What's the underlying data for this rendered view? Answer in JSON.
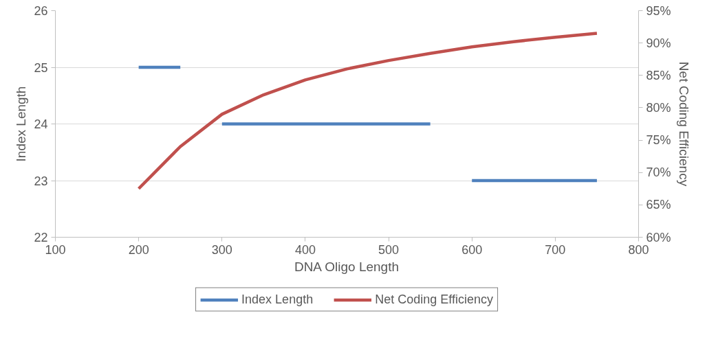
{
  "chart_data": {
    "type": "line",
    "xlabel": "DNA Oligo Length",
    "ylabel": "Index Length",
    "y2label": "Net Coding Efficiency",
    "xlim": [
      100,
      800
    ],
    "xticks": [
      100,
      200,
      300,
      400,
      500,
      600,
      700,
      800
    ],
    "ylim": [
      22,
      26
    ],
    "yticks": [
      22,
      23,
      24,
      25,
      26
    ],
    "y2lim": [
      60,
      95
    ],
    "y2ticks": [
      {
        "value": 60,
        "label": "60%"
      },
      {
        "value": 65,
        "label": "65%"
      },
      {
        "value": 70,
        "label": "70%"
      },
      {
        "value": 75,
        "label": "75%"
      },
      {
        "value": 80,
        "label": "80%"
      },
      {
        "value": 85,
        "label": "85%"
      },
      {
        "value": 90,
        "label": "90%"
      },
      {
        "value": 95,
        "label": "95%"
      }
    ],
    "grid": "y",
    "legend": "bottom",
    "line_style": "solid",
    "marker": "none",
    "series": [
      {
        "name": "Index Length",
        "color": "#4f81bd",
        "x": [
          200,
          250,
          275,
          300,
          550,
          575,
          600,
          750
        ],
        "values": [
          25,
          25,
          null,
          24,
          24,
          null,
          23,
          23
        ]
      },
      {
        "name": "Net Coding Efficiency",
        "color": "#c0504d",
        "axis": "y2",
        "x": [
          200,
          250,
          300,
          350,
          400,
          450,
          500,
          550,
          600,
          650,
          700,
          750
        ],
        "values": [
          67.5,
          74,
          79,
          82,
          84.3,
          86,
          87.3,
          88.4,
          89.4,
          90.2,
          90.9,
          91.5
        ]
      }
    ]
  }
}
